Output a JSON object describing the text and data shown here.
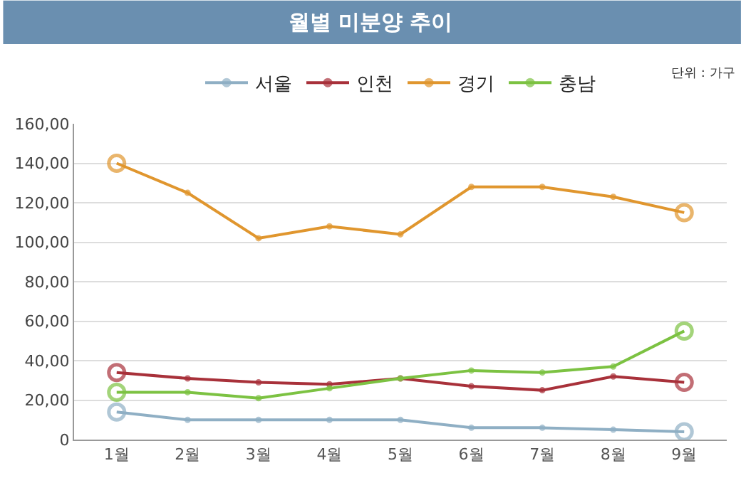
{
  "chart_data": {
    "type": "line",
    "title": "월별 미분양 추이",
    "annotations": [
      "단위 : 가구"
    ],
    "categories": [
      "1월",
      "2월",
      "3월",
      "4월",
      "5월",
      "6월",
      "7월",
      "8월",
      "9월"
    ],
    "series": [
      {
        "name": "서울",
        "color": "#8fafc4",
        "values": [
          14,
          10,
          10,
          10,
          10,
          6,
          6,
          5,
          4
        ]
      },
      {
        "name": "인천",
        "color": "#a8313a",
        "values": [
          34,
          31,
          29,
          28,
          31,
          27,
          25,
          32,
          29
        ]
      },
      {
        "name": "경기",
        "color": "#e0962e",
        "values": [
          140,
          125,
          102,
          108,
          104,
          128,
          128,
          123,
          115
        ]
      },
      {
        "name": "충남",
        "color": "#7cc242",
        "values": [
          24,
          24,
          21,
          26,
          31,
          35,
          34,
          37,
          55
        ]
      }
    ],
    "ylim": [
      0,
      160
    ],
    "yticks": [
      0,
      {
        "value": 20,
        "label": "20,00"
      },
      {
        "value": 40,
        "label": "40,00"
      },
      {
        "value": 60,
        "label": "60,00"
      },
      {
        "value": 80,
        "label": "80,00"
      },
      {
        "value": 100,
        "label": "100,00"
      },
      {
        "value": 120,
        "label": "120,00"
      },
      {
        "value": 140,
        "label": "140,00"
      },
      {
        "value": 160,
        "label": "160,00"
      }
    ],
    "grid": "y",
    "legend": "top",
    "marker": "circle",
    "line_style": "solid"
  }
}
